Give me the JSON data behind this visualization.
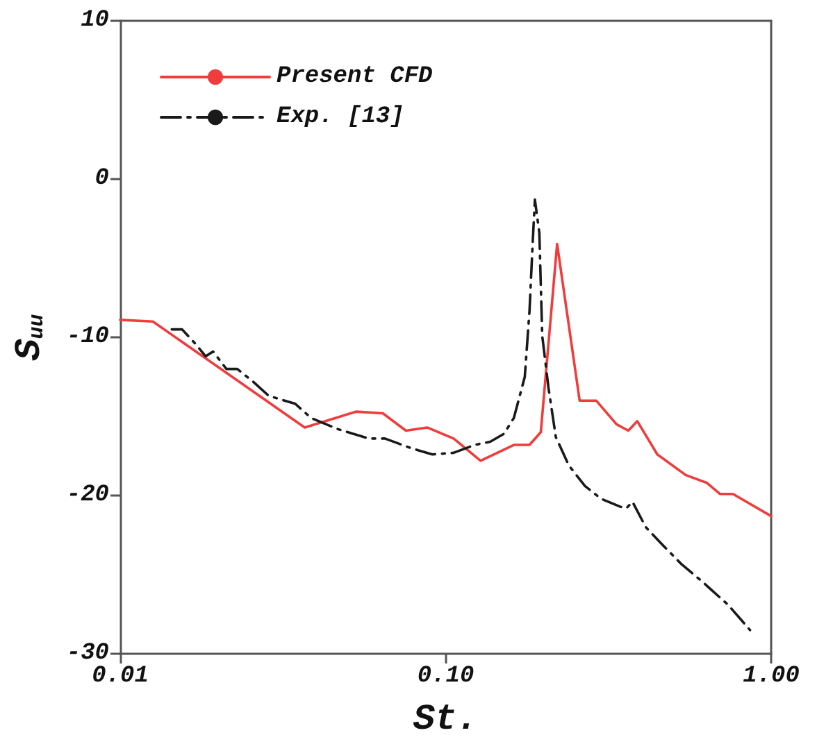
{
  "chart_data": {
    "type": "line",
    "xlabel": "St.",
    "ylabel": "S$_{uu}$",
    "log": "x",
    "xlim": [
      0.01,
      1
    ],
    "xticks": [
      {
        "value": 0.01,
        "label": "0.01"
      },
      {
        "value": 0.1,
        "label": "0.10"
      },
      {
        "value": 1,
        "label": "1.00"
      }
    ],
    "ylim": [
      -30,
      10
    ],
    "yticks": [
      -30,
      -20,
      -10,
      0,
      10
    ],
    "grid": false,
    "legend": "top left",
    "marker": "none",
    "series": [
      {
        "name": "Present CFD",
        "color": "#f03c3c",
        "line_style": "solid",
        "x": [
          0.01,
          0.0126,
          0.0369,
          0.053,
          0.0641,
          0.0755,
          0.0877,
          0.1058,
          0.128,
          0.162,
          0.181,
          0.196,
          0.22,
          0.258,
          0.29,
          0.335,
          0.364,
          0.388,
          0.447,
          0.546,
          0.635,
          0.696,
          0.763,
          1.0
        ],
        "values": [
          -8.9,
          -9.0,
          -15.7,
          -14.7,
          -14.8,
          -15.9,
          -15.7,
          -16.4,
          -17.8,
          -16.8,
          -16.8,
          -16.0,
          -4.1,
          -14.0,
          -14.0,
          -15.5,
          -15.9,
          -15.3,
          -17.4,
          -18.7,
          -19.2,
          -19.9,
          -19.9,
          -21.3
        ]
      },
      {
        "name": "Exp. [13]",
        "color": "#1a1a1a",
        "line_style": "dashed",
        "x": [
          0.0144,
          0.0155,
          0.017,
          0.0183,
          0.0193,
          0.0212,
          0.0229,
          0.0256,
          0.0286,
          0.032,
          0.0345,
          0.0386,
          0.0466,
          0.0581,
          0.0651,
          0.0782,
          0.091,
          0.1058,
          0.1228,
          0.137,
          0.151,
          0.162,
          0.175,
          0.181,
          0.185,
          0.188,
          0.194,
          0.198,
          0.207,
          0.218,
          0.239,
          0.268,
          0.3,
          0.343,
          0.359,
          0.375,
          0.412,
          0.463,
          0.528,
          0.611,
          0.737,
          0.861
        ],
        "values": [
          -9.5,
          -9.5,
          -10.4,
          -11.2,
          -10.9,
          -12.0,
          -12.0,
          -12.8,
          -13.7,
          -14.0,
          -14.2,
          -15.1,
          -15.8,
          -16.4,
          -16.4,
          -17.0,
          -17.4,
          -17.3,
          -16.8,
          -16.6,
          -16.1,
          -15.1,
          -12.5,
          -8.3,
          -4.1,
          -1.3,
          -3.4,
          -9.9,
          -13.2,
          -16.3,
          -18.1,
          -19.4,
          -20.2,
          -20.7,
          -20.8,
          -20.4,
          -22.0,
          -23.1,
          -24.3,
          -25.4,
          -26.9,
          -28.5
        ]
      }
    ]
  }
}
